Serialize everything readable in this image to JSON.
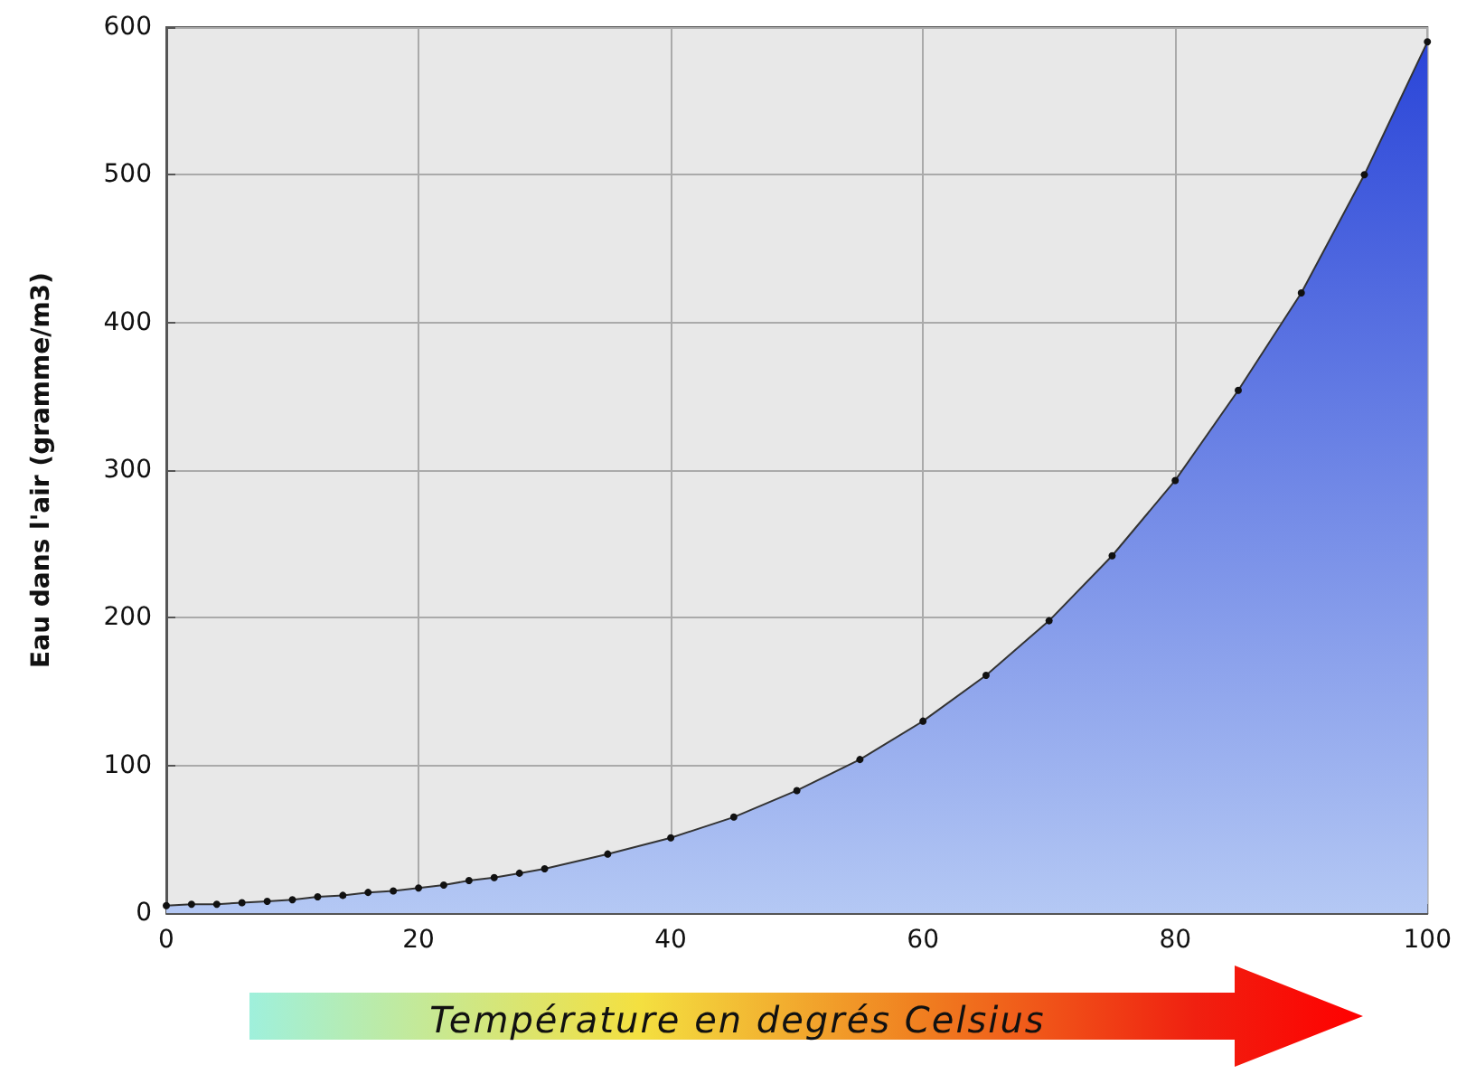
{
  "chart_data": {
    "type": "area",
    "xlabel": "Température en degrés Celsius",
    "ylabel": "Eau dans l'air (gramme/m3)",
    "x": [
      0,
      2,
      4,
      6,
      8,
      10,
      12,
      14,
      16,
      18,
      20,
      22,
      24,
      26,
      28,
      30,
      35,
      40,
      45,
      50,
      55,
      60,
      65,
      70,
      75,
      80,
      85,
      90,
      95,
      100
    ],
    "series": [
      {
        "color": "#2a45d8",
        "values": [
          5,
          6,
          6,
          7,
          8,
          9,
          11,
          12,
          14,
          15,
          17,
          19,
          22,
          24,
          27,
          30,
          40,
          51,
          65,
          83,
          104,
          130,
          161,
          198,
          242,
          293,
          354,
          420,
          500,
          590
        ]
      }
    ],
    "xlim": [
      0,
      100
    ],
    "xticks": [
      0,
      20,
      40,
      60,
      80,
      100
    ],
    "ylim": [
      0,
      600
    ],
    "yticks": [
      0,
      100,
      200,
      300,
      400,
      500,
      600
    ],
    "grid": true,
    "marker": "circle"
  }
}
